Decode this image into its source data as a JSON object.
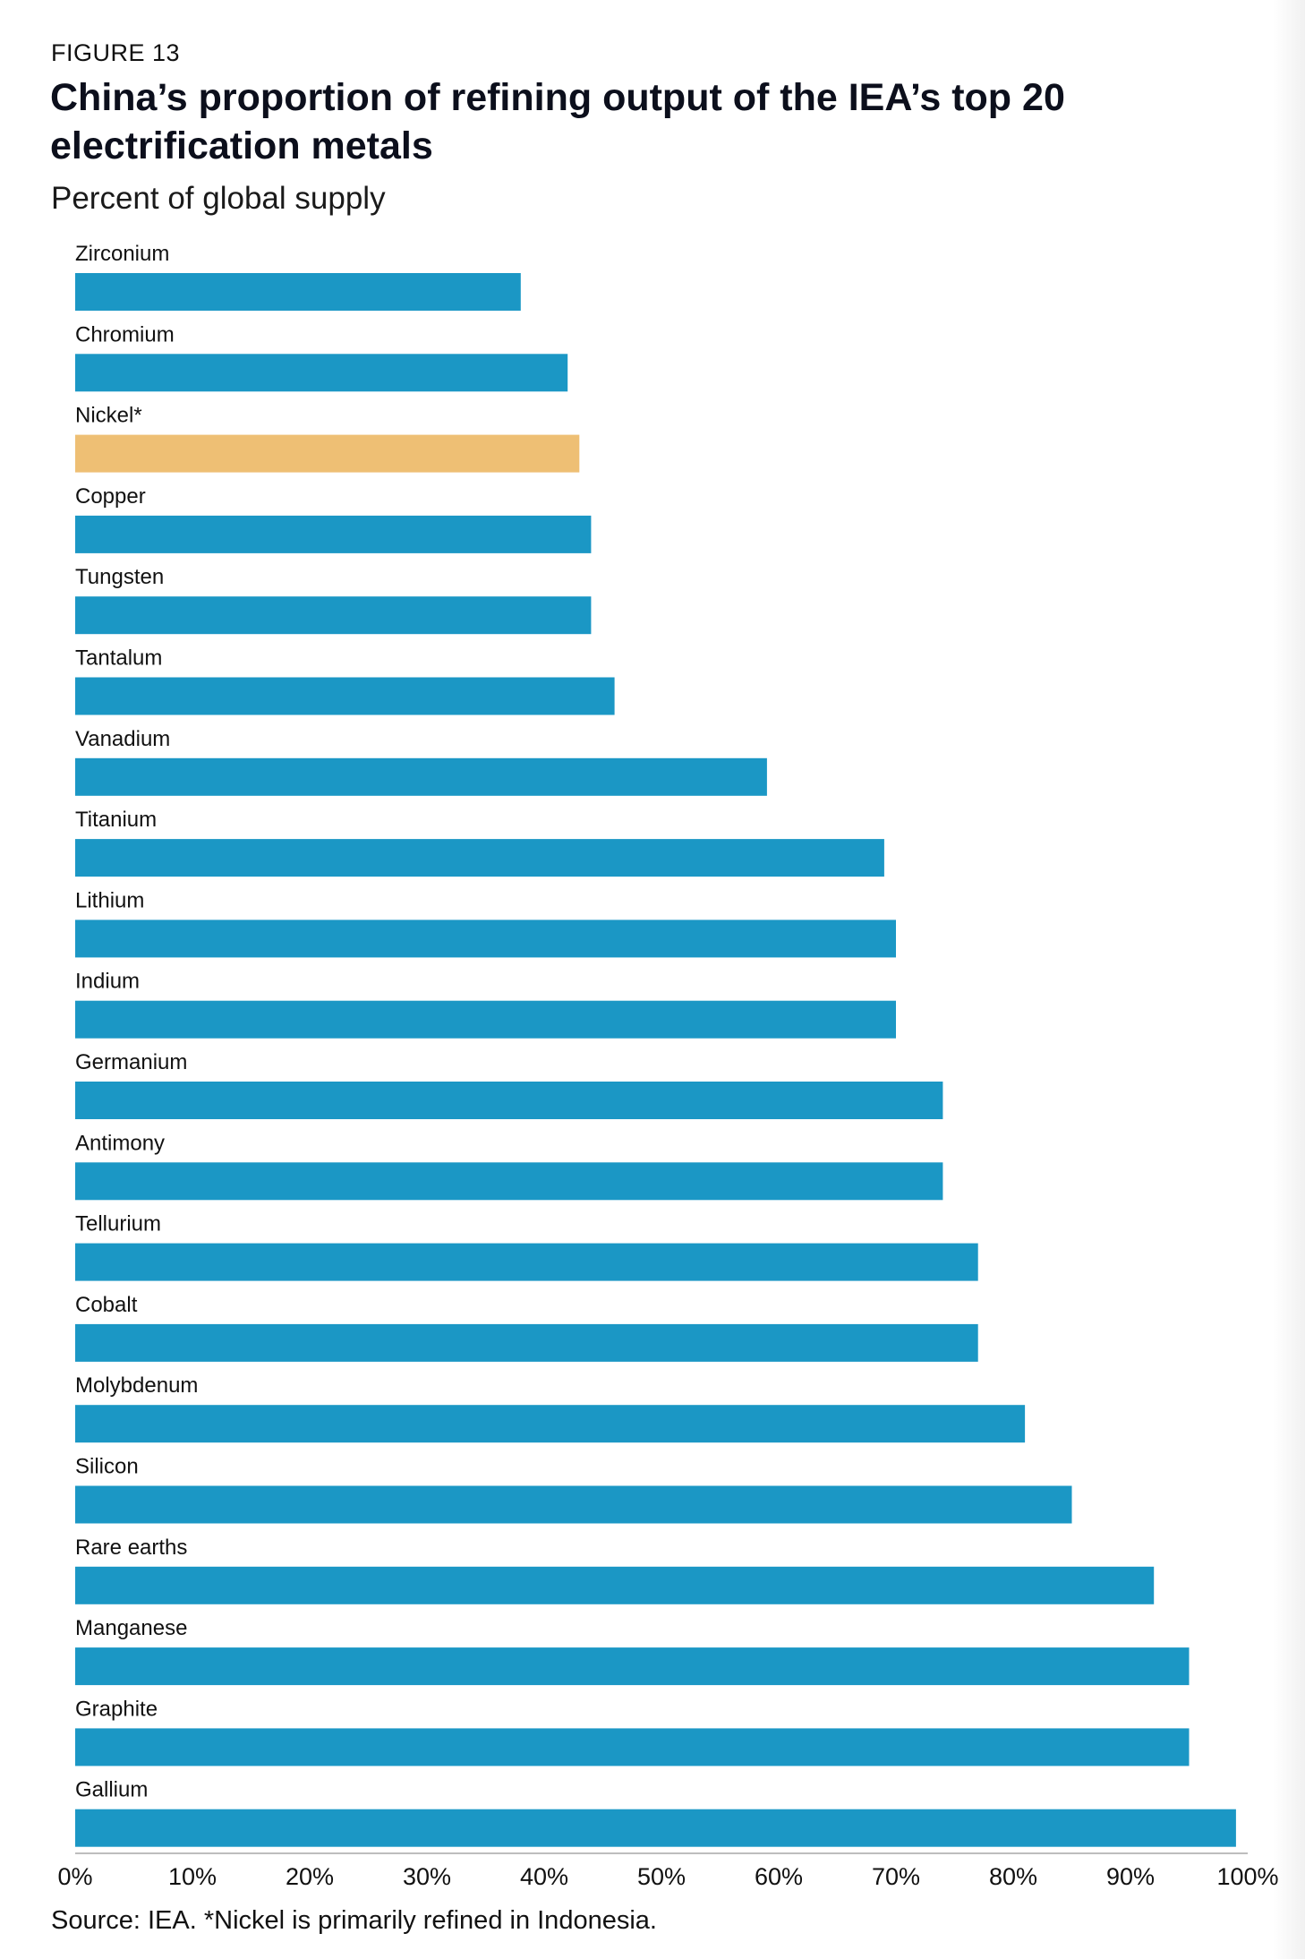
{
  "figure_label": "FIGURE 13",
  "title": "China’s proportion of refining output of the IEA’s top 20 electrification metals",
  "subtitle": "Percent of global supply",
  "source": "Source: IEA. *Nickel is primarily refined in Indonesia.",
  "colors": {
    "bar": "#1b97c5",
    "highlight": "#eebf74",
    "axis": "#bdbdbd"
  },
  "chart_data": {
    "type": "bar",
    "orientation": "horizontal",
    "title": "China’s proportion of refining output of the IEA’s top 20 electrification metals",
    "subtitle": "Percent of global supply",
    "xlabel": "",
    "ylabel": "",
    "xlim": [
      0,
      100
    ],
    "grid": false,
    "categories": [
      "Zirconium",
      "Chromium",
      "Nickel*",
      "Copper",
      "Tungsten",
      "Tantalum",
      "Vanadium",
      "Titanium",
      "Lithium",
      "Indium",
      "Germanium",
      "Antimony",
      "Tellurium",
      "Cobalt",
      "Molybdenum",
      "Silicon",
      "Rare earths",
      "Manganese",
      "Graphite",
      "Gallium"
    ],
    "values": [
      38,
      42,
      43,
      44,
      44,
      46,
      59,
      69,
      70,
      70,
      74,
      74,
      77,
      77,
      81,
      85,
      92,
      95,
      95,
      99
    ],
    "highlight": [
      "Nickel*"
    ],
    "x_ticks": [
      0,
      10,
      20,
      30,
      40,
      50,
      60,
      70,
      80,
      90,
      100
    ],
    "x_tick_labels": [
      "0%",
      "10%",
      "20%",
      "30%",
      "40%",
      "50%",
      "60%",
      "70%",
      "80%",
      "90%",
      "100%"
    ]
  }
}
